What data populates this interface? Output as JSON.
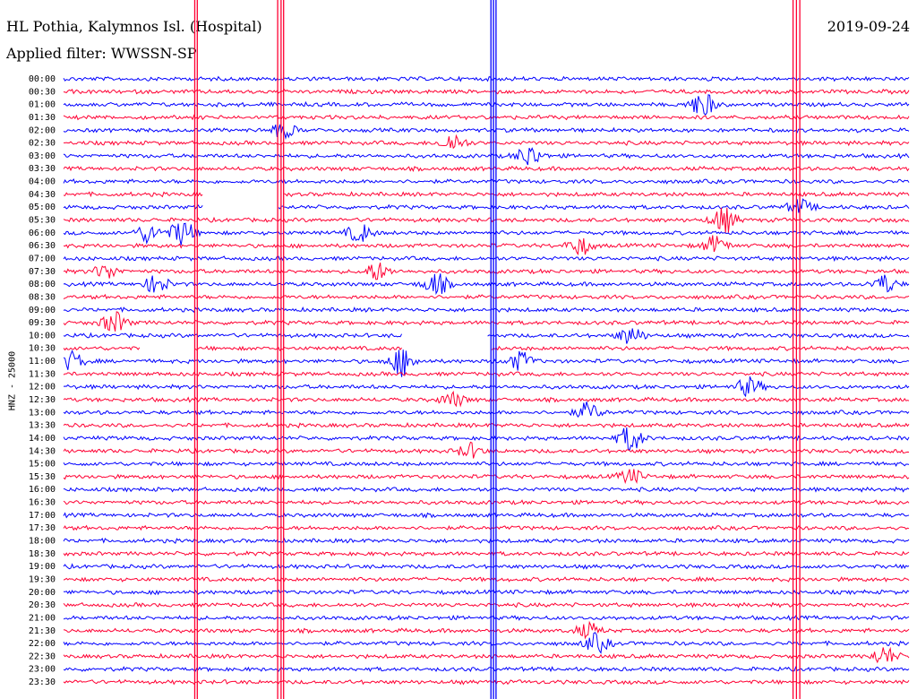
{
  "header": {
    "station": "HL Pothia, Kalymnos Isl. (Hospital)",
    "filter": "Applied filter: WWSSN-SP",
    "date": "2019-09-24"
  },
  "chart_data": {
    "type": "line",
    "title": "HL Pothia, Kalymnos Isl. (Hospital)",
    "subtitle": "Applied filter: WWSSN-SP",
    "date": "2019-09-24",
    "ylabel": "HNZ - 25000",
    "colors": {
      "even_rows": "#0000ff",
      "odd_rows": "#ff0033"
    },
    "rows": [
      "00:00",
      "00:30",
      "01:00",
      "01:30",
      "02:00",
      "02:30",
      "03:00",
      "03:30",
      "04:00",
      "04:30",
      "05:00",
      "05:30",
      "06:00",
      "06:30",
      "07:00",
      "07:30",
      "08:00",
      "08:30",
      "09:00",
      "09:30",
      "10:00",
      "10:30",
      "11:00",
      "11:30",
      "12:00",
      "12:30",
      "13:00",
      "13:30",
      "14:00",
      "14:30",
      "15:00",
      "15:30",
      "16:00",
      "16:30",
      "17:00",
      "17:30",
      "18:00",
      "18:30",
      "19:00",
      "19:30",
      "20:00",
      "20:30",
      "21:00",
      "21:30",
      "22:00",
      "22:30",
      "23:00",
      "23:30"
    ],
    "bursts": [
      {
        "row": 2,
        "x": 0.755,
        "amp": 14
      },
      {
        "row": 4,
        "x": 0.26,
        "amp": 8
      },
      {
        "row": 5,
        "x": 0.46,
        "amp": 10
      },
      {
        "row": 6,
        "x": 0.55,
        "amp": 12
      },
      {
        "row": 10,
        "x": 0.87,
        "amp": 8
      },
      {
        "row": 11,
        "x": 0.78,
        "amp": 14
      },
      {
        "row": 12,
        "x": 0.1,
        "amp": 10
      },
      {
        "row": 12,
        "x": 0.14,
        "amp": 14
      },
      {
        "row": 12,
        "x": 0.35,
        "amp": 10
      },
      {
        "row": 13,
        "x": 0.61,
        "amp": 10
      },
      {
        "row": 13,
        "x": 0.77,
        "amp": 10
      },
      {
        "row": 15,
        "x": 0.05,
        "amp": 8
      },
      {
        "row": 15,
        "x": 0.37,
        "amp": 10
      },
      {
        "row": 16,
        "x": 0.11,
        "amp": 10
      },
      {
        "row": 16,
        "x": 0.44,
        "amp": 12
      },
      {
        "row": 16,
        "x": 0.97,
        "amp": 10
      },
      {
        "row": 19,
        "x": 0.06,
        "amp": 12
      },
      {
        "row": 20,
        "x": 0.67,
        "amp": 10
      },
      {
        "row": 22,
        "x": 0.01,
        "amp": 10
      },
      {
        "row": 22,
        "x": 0.4,
        "amp": 16
      },
      {
        "row": 22,
        "x": 0.54,
        "amp": 10
      },
      {
        "row": 24,
        "x": 0.81,
        "amp": 10
      },
      {
        "row": 25,
        "x": 0.46,
        "amp": 8
      },
      {
        "row": 26,
        "x": 0.62,
        "amp": 10
      },
      {
        "row": 28,
        "x": 0.67,
        "amp": 14
      },
      {
        "row": 29,
        "x": 0.48,
        "amp": 8
      },
      {
        "row": 31,
        "x": 0.67,
        "amp": 8
      },
      {
        "row": 43,
        "x": 0.62,
        "amp": 8
      },
      {
        "row": 44,
        "x": 0.63,
        "amp": 10
      },
      {
        "row": 45,
        "x": 0.97,
        "amp": 10
      }
    ],
    "glitches": [
      {
        "x": 0.155,
        "top": 0.0,
        "bottom": 1.0,
        "color": "#ff0033"
      },
      {
        "x": 0.158,
        "top": 0.0,
        "bottom": 1.0,
        "color": "#ff0033"
      },
      {
        "x": 0.253,
        "top": 0.0,
        "bottom": 1.0,
        "color": "#ff0033"
      },
      {
        "x": 0.257,
        "top": 0.0,
        "bottom": 1.0,
        "color": "#ff0033"
      },
      {
        "x": 0.26,
        "top": 0.0,
        "bottom": 1.0,
        "color": "#ff0033"
      },
      {
        "x": 0.505,
        "top": 0.0,
        "bottom": 1.0,
        "color": "#0000ff"
      },
      {
        "x": 0.508,
        "top": 0.0,
        "bottom": 1.0,
        "color": "#0000ff"
      },
      {
        "x": 0.511,
        "top": 0.0,
        "bottom": 1.0,
        "color": "#0000ff"
      },
      {
        "x": 0.862,
        "top": 0.0,
        "bottom": 1.0,
        "color": "#ff0033"
      },
      {
        "x": 0.866,
        "top": 0.0,
        "bottom": 1.0,
        "color": "#ff0033"
      },
      {
        "x": 0.87,
        "top": 0.0,
        "bottom": 1.0,
        "color": "#ff0033"
      }
    ],
    "gaps": [
      {
        "row": 9,
        "x0": 0.165,
        "x1": 0.26
      },
      {
        "row": 10,
        "x0": 0.165,
        "x1": 0.253
      },
      {
        "row": 21,
        "x0": 0.09,
        "x1": 0.155
      },
      {
        "row": 20,
        "x0": 0.4,
        "x1": 0.5
      },
      {
        "row": 21,
        "x0": 0.4,
        "x1": 0.505
      }
    ]
  }
}
